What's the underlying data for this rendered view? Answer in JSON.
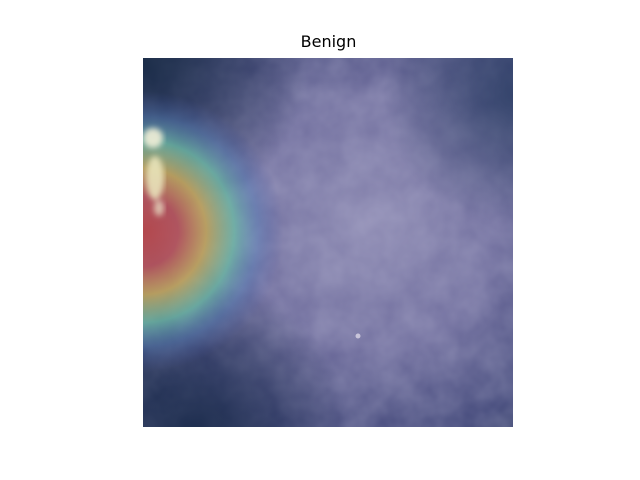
{
  "figure": {
    "title": "Benign"
  },
  "image": {
    "description_kind": "heatmap-overlay",
    "colormap": "jet",
    "base_tint": "#4a4f86",
    "hotspot_side": "left-center",
    "hotspot_colors": [
      "#b94b4b",
      "#c9b85a",
      "#6fc1a6",
      "#5a73b8"
    ]
  }
}
